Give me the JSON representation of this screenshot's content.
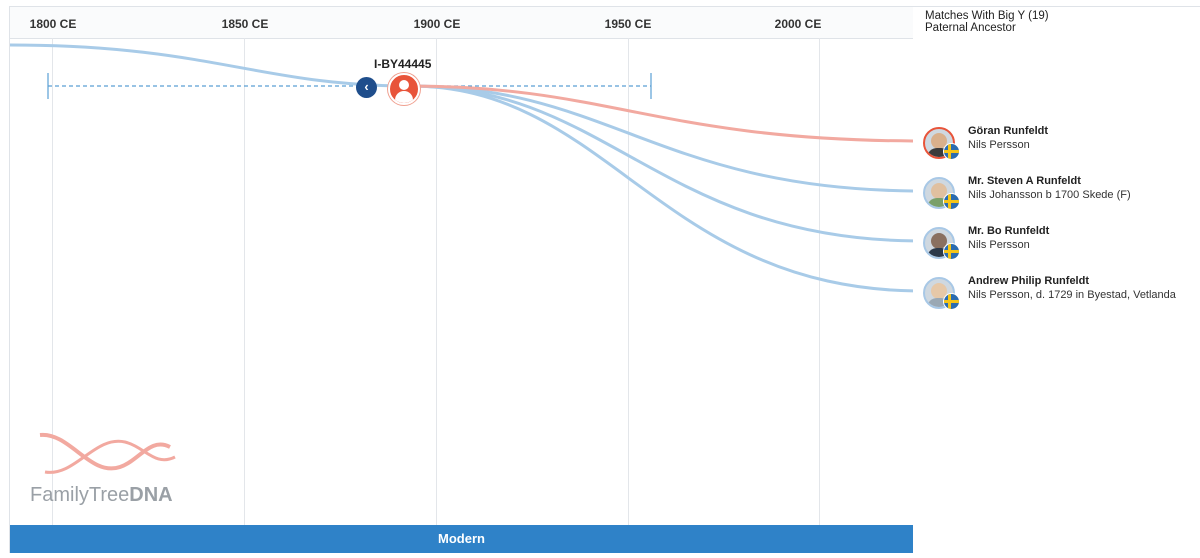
{
  "axis": {
    "years": [
      "1800 CE",
      "1850 CE",
      "1900 CE",
      "1950 CE",
      "2000 CE"
    ]
  },
  "node": {
    "haplogroup": "I-BY44445",
    "back_icon": "chevron-left-icon",
    "ancestor_icon": "person-icon"
  },
  "panel": {
    "title": "Matches With Big Y (19)",
    "subtitle": "Paternal Ancestor"
  },
  "matches": [
    {
      "name": "Göran Runfeldt",
      "ancestor": "Nils Persson",
      "country_flag": "sweden-flag-icon",
      "line_color": "#f2a9a0",
      "highlighted": true
    },
    {
      "name": "Mr. Steven A Runfeldt",
      "ancestor": "Nils Johansson b 1700 Skede (F)",
      "country_flag": "sweden-flag-icon",
      "line_color": "#a8cbe8",
      "highlighted": false
    },
    {
      "name": "Mr. Bo Runfeldt",
      "ancestor": "Nils Persson",
      "country_flag": "sweden-flag-icon",
      "line_color": "#a8cbe8",
      "highlighted": false
    },
    {
      "name": "Andrew Philip Runfeldt",
      "ancestor": "Nils Persson, d. 1729 in Byestad, Vetlanda",
      "country_flag": "sweden-flag-icon",
      "line_color": "#a8cbe8",
      "highlighted": false
    }
  ],
  "footer": {
    "era_label": "Modern"
  },
  "logo": {
    "text_regular": "FamilyTree",
    "text_bold": "DNA"
  },
  "colors": {
    "accent_blue": "#2f82c8",
    "navy": "#1f4e8c",
    "highlight_red": "#e8543a",
    "branch_blue": "#a8cbe8",
    "branch_red": "#f2a9a0"
  }
}
